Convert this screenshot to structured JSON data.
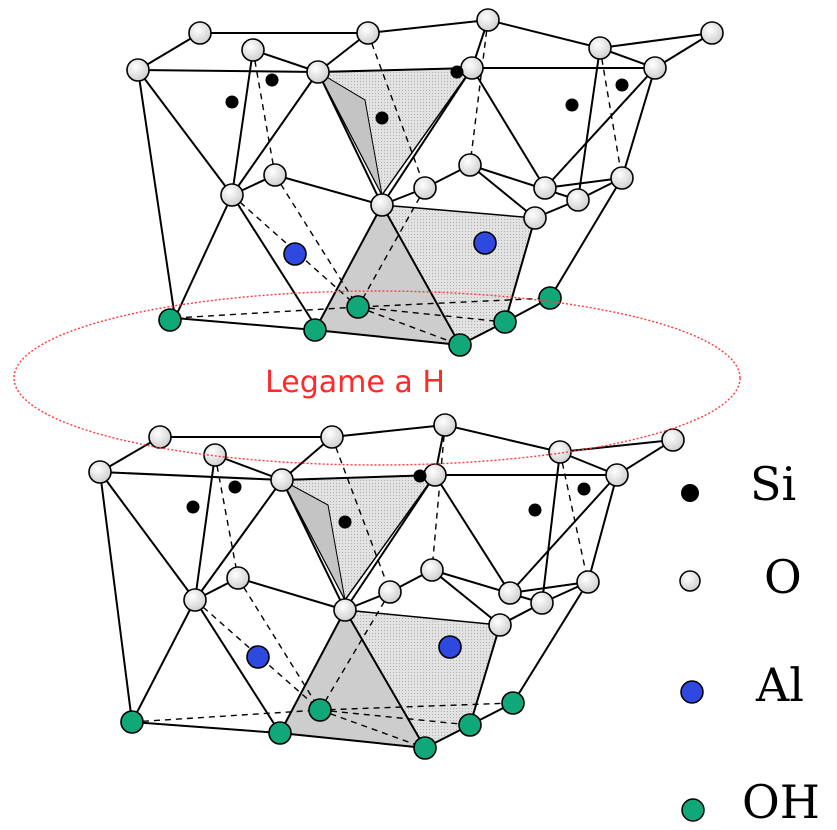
{
  "annotation": {
    "label": "Legame a H",
    "color": "#ff2a2a"
  },
  "legend": [
    {
      "symbol": "si-atom-icon",
      "label": "Si",
      "color": "#000000"
    },
    {
      "symbol": "o-atom-icon",
      "label": "O",
      "color": "#e6e6e6"
    },
    {
      "symbol": "al-atom-icon",
      "label": "Al",
      "color": "#2f48e0"
    },
    {
      "symbol": "oh-group-icon",
      "label": "OH",
      "color": "#10a878"
    }
  ],
  "colors": {
    "oxygen": "#e6e6e6",
    "silicon": "#000000",
    "aluminium": "#2f48e0",
    "hydroxyl": "#10a878",
    "polyhedron_fill": "#d6d6d6",
    "bond": "#000000"
  }
}
